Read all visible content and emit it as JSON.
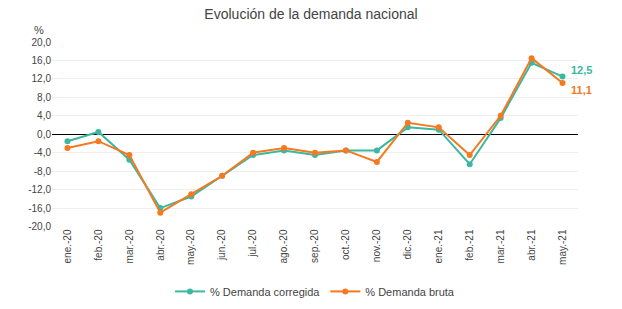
{
  "chart_data": {
    "type": "line",
    "title": "Evolución de la demanda nacional",
    "ylabel": "%",
    "categories": [
      "ene.-20",
      "feb.-20",
      "mar.-20",
      "abr.-20",
      "may.-20",
      "jun.-20",
      "jul.-20",
      "ago.-20",
      "sep.-20",
      "oct.-20",
      "nov.-20",
      "dic.-20",
      "ene.-21",
      "feb.-21",
      "mar.-21",
      "abr.-21",
      "may.-21"
    ],
    "series": [
      {
        "name": "% Demanda corregida",
        "color": "#3cb8a0",
        "marker": "circle",
        "end_label": "12,5",
        "values": [
          -1.5,
          0.5,
          -5.5,
          -16.0,
          -13.5,
          -9.0,
          -4.5,
          -3.5,
          -4.5,
          -3.5,
          -3.5,
          1.5,
          1.0,
          -6.5,
          3.5,
          15.5,
          12.5
        ]
      },
      {
        "name": "% Demanda bruta",
        "color": "#f47920",
        "marker": "circle",
        "end_label": "11,1",
        "values": [
          -3.0,
          -1.5,
          -4.5,
          -17.0,
          -13.0,
          -9.0,
          -4.0,
          -3.0,
          -4.0,
          -3.5,
          -6.0,
          2.5,
          1.5,
          -4.5,
          4.0,
          16.5,
          11.1
        ]
      }
    ],
    "ylim": [
      -20.0,
      20.0
    ],
    "yticks": [
      {
        "value": -20.0,
        "label": "-20,0"
      },
      {
        "value": -16.0,
        "label": "-16,0"
      },
      {
        "value": -12.0,
        "label": "-12,0"
      },
      {
        "value": -8.0,
        "label": "-8,0"
      },
      {
        "value": -4.0,
        "label": "-4,0"
      },
      {
        "value": 0.0,
        "label": "0,0"
      },
      {
        "value": 4.0,
        "label": "4,0"
      },
      {
        "value": 8.0,
        "label": "8,0"
      },
      {
        "value": 12.0,
        "label": "12,0"
      },
      {
        "value": 16.0,
        "label": "16,0"
      },
      {
        "value": 20.0,
        "label": "20,0"
      }
    ],
    "grid": true,
    "legend": "bottom"
  }
}
